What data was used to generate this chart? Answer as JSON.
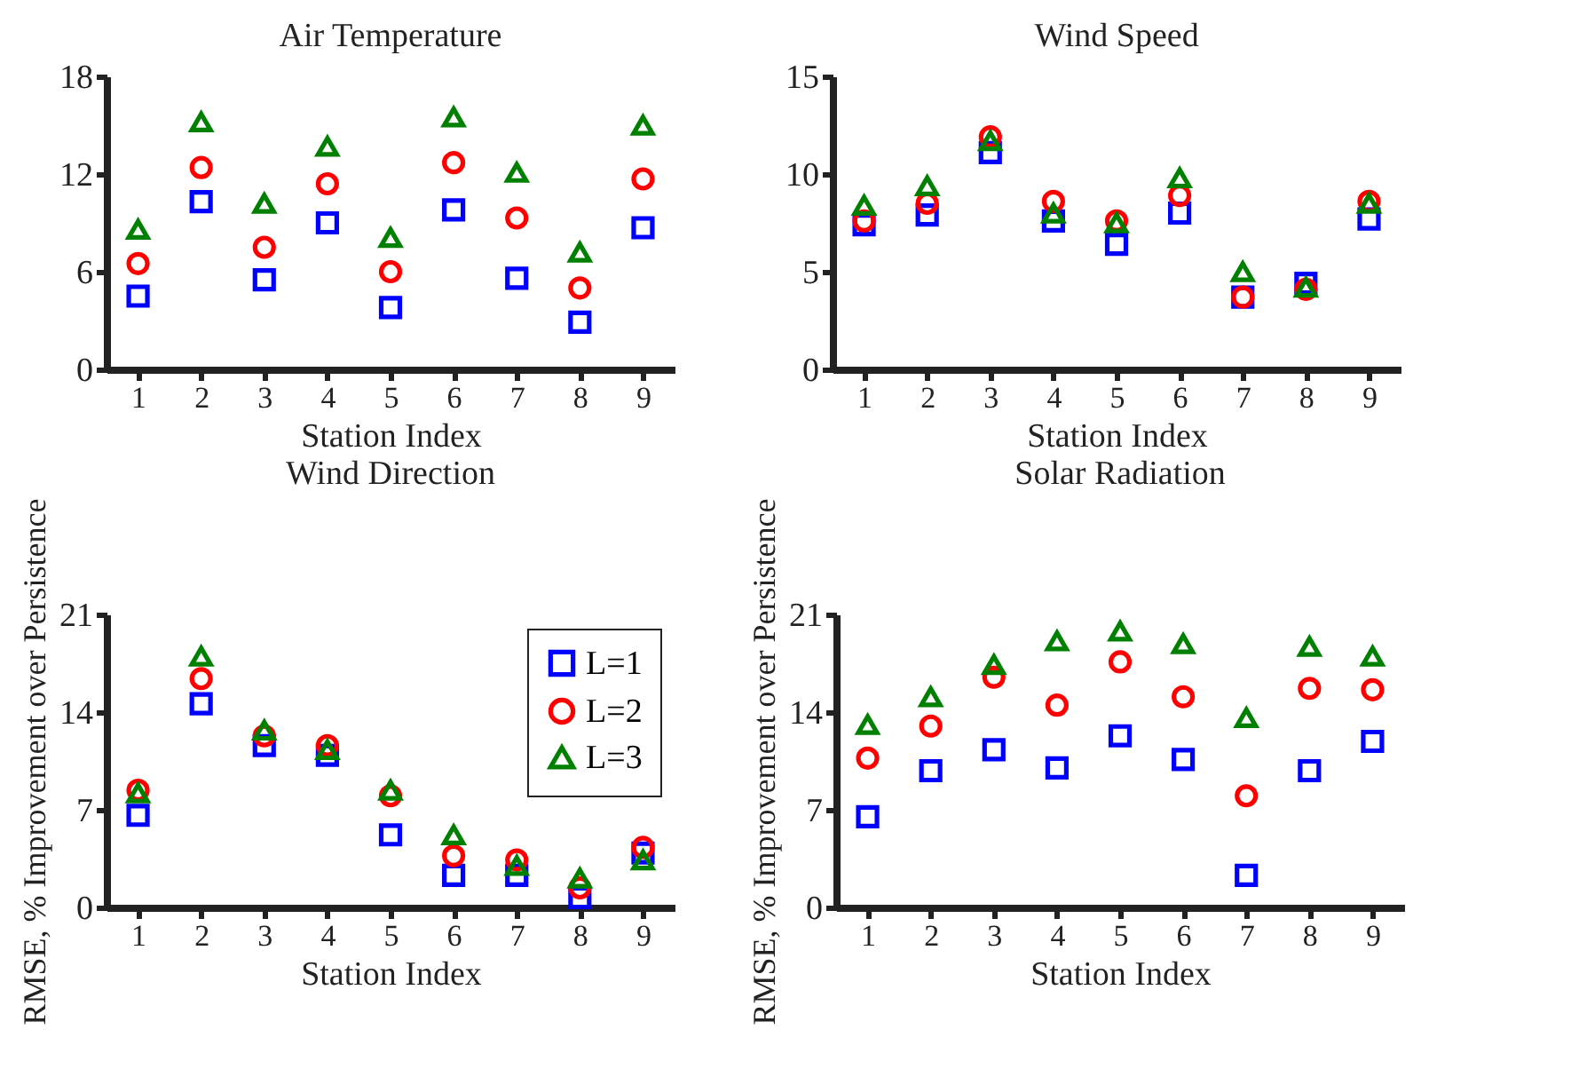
{
  "chart_data": [
    {
      "type": "scatter",
      "title": "Air Temperature",
      "xlabel": "Station Index",
      "categories": [
        "1",
        "2",
        "3",
        "4",
        "5",
        "6",
        "7",
        "8",
        "9"
      ],
      "ylim": [
        0,
        18
      ],
      "yticks": [
        0,
        6,
        12,
        18
      ],
      "grid": false,
      "legend": false,
      "series": [
        {
          "color": "#0000ff",
          "marker": "square",
          "values": [
            4.5,
            10.3,
            5.5,
            9.0,
            3.8,
            9.8,
            5.6,
            2.9,
            8.7
          ]
        },
        {
          "color": "#ff0000",
          "marker": "circle",
          "values": [
            6.5,
            12.4,
            7.5,
            11.4,
            6.0,
            12.7,
            9.3,
            5.0,
            11.7
          ]
        },
        {
          "color": "#008000",
          "marker": "triangle",
          "values": [
            8.6,
            15.2,
            10.2,
            13.7,
            8.1,
            15.5,
            12.1,
            7.2,
            15.0
          ]
        }
      ]
    },
    {
      "type": "scatter",
      "title": "Wind Speed",
      "xlabel": "Station Index",
      "categories": [
        "1",
        "2",
        "3",
        "4",
        "5",
        "6",
        "7",
        "8",
        "9"
      ],
      "ylim": [
        0,
        15
      ],
      "yticks": [
        0,
        5,
        10,
        15
      ],
      "grid": false,
      "legend": false,
      "series": [
        {
          "color": "#0000ff",
          "marker": "square",
          "values": [
            7.4,
            7.9,
            11.1,
            7.6,
            6.4,
            8.0,
            3.7,
            4.4,
            7.7
          ]
        },
        {
          "color": "#ff0000",
          "marker": "circle",
          "values": [
            7.6,
            8.5,
            11.9,
            8.6,
            7.6,
            8.9,
            3.7,
            4.1,
            8.6
          ]
        },
        {
          "color": "#008000",
          "marker": "triangle",
          "values": [
            8.4,
            9.4,
            11.7,
            8.0,
            7.5,
            9.8,
            5.0,
            4.2,
            8.5
          ]
        }
      ]
    },
    {
      "type": "scatter",
      "title": "Wind Direction",
      "xlabel": "Station Index",
      "ylabel": "RMSE, % Improvement over Persistence",
      "categories": [
        "1",
        "2",
        "3",
        "4",
        "5",
        "6",
        "7",
        "8",
        "9"
      ],
      "ylim": [
        0,
        21
      ],
      "yticks": [
        0,
        7,
        14,
        21
      ],
      "grid": false,
      "legend": "top right",
      "series": [
        {
          "name": "L=1",
          "color": "#0000ff",
          "marker": "square",
          "values": [
            6.6,
            14.6,
            11.6,
            10.9,
            5.2,
            2.3,
            2.3,
            0.7,
            3.9
          ]
        },
        {
          "name": "L=2",
          "color": "#ff0000",
          "marker": "circle",
          "values": [
            8.4,
            16.4,
            12.3,
            11.6,
            8.0,
            3.7,
            3.4,
            1.4,
            4.3
          ]
        },
        {
          "name": "L=3",
          "color": "#008000",
          "marker": "triangle",
          "values": [
            8.2,
            18.0,
            12.7,
            11.3,
            8.4,
            5.2,
            3.0,
            2.1,
            3.4
          ]
        }
      ]
    },
    {
      "type": "scatter",
      "title": "Solar Radiation",
      "xlabel": "Station Index",
      "ylabel": "RMSE, % Improvement over Persistence",
      "categories": [
        "1",
        "2",
        "3",
        "4",
        "5",
        "6",
        "7",
        "8",
        "9"
      ],
      "ylim": [
        0,
        21
      ],
      "yticks": [
        0,
        7,
        14,
        21
      ],
      "grid": false,
      "legend": false,
      "series": [
        {
          "color": "#0000ff",
          "marker": "square",
          "values": [
            6.5,
            9.8,
            11.3,
            10.0,
            12.3,
            10.6,
            2.3,
            9.8,
            11.9
          ]
        },
        {
          "color": "#ff0000",
          "marker": "circle",
          "values": [
            10.7,
            13.0,
            16.5,
            14.5,
            17.6,
            15.1,
            8.0,
            15.7,
            15.6
          ]
        },
        {
          "color": "#008000",
          "marker": "triangle",
          "values": [
            13.1,
            15.1,
            17.4,
            19.1,
            19.8,
            18.9,
            13.6,
            18.7,
            18.0
          ]
        }
      ]
    }
  ]
}
